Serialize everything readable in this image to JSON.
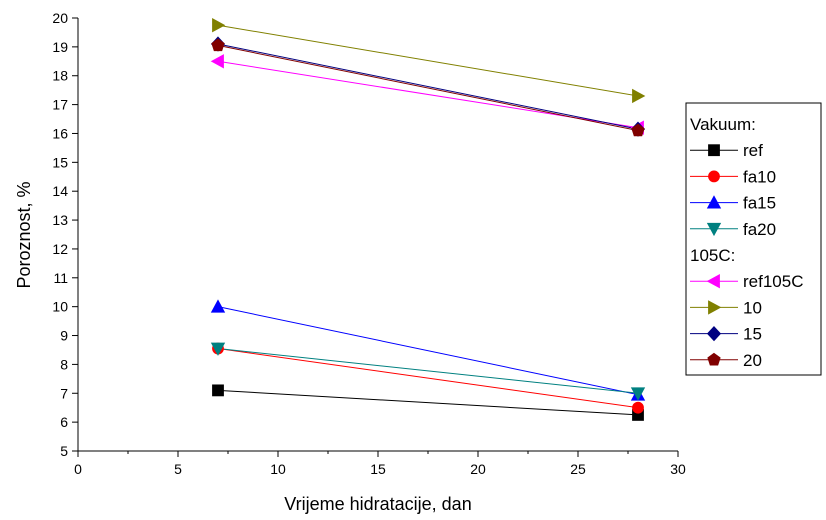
{
  "chart_data": {
    "type": "line",
    "xlabel": "Vrijeme hidratacije, dan",
    "ylabel": "Poroznost, %",
    "xlim": [
      0,
      30
    ],
    "ylim": [
      5,
      20
    ],
    "x_ticks": [
      "0",
      "5",
      "10",
      "15",
      "20",
      "25",
      "30"
    ],
    "y_ticks": [
      "5",
      "6",
      "7",
      "8",
      "9",
      "10",
      "11",
      "12",
      "13",
      "14",
      "15",
      "16",
      "17",
      "18",
      "19",
      "20"
    ],
    "grid": false,
    "legend_position": "right",
    "legend_groups": [
      {
        "heading": "Vakuum:",
        "series": [
          "ref",
          "fa10",
          "fa15",
          "fa20"
        ]
      },
      {
        "heading": "105C:",
        "series": [
          "ref105C",
          "10",
          "15",
          "20"
        ]
      }
    ],
    "series": [
      {
        "name": "ref",
        "color": "#000000",
        "marker": "square",
        "x": [
          7,
          28
        ],
        "y": [
          7.1,
          6.25
        ]
      },
      {
        "name": "fa10",
        "color": "#ff0000",
        "marker": "circle",
        "x": [
          7,
          28
        ],
        "y": [
          8.55,
          6.5
        ]
      },
      {
        "name": "fa15",
        "color": "#0000ff",
        "marker": "triangle-up",
        "x": [
          7,
          28
        ],
        "y": [
          10.0,
          6.95
        ]
      },
      {
        "name": "fa20",
        "color": "#008080",
        "marker": "triangle-down",
        "x": [
          7,
          28
        ],
        "y": [
          8.55,
          7.0
        ]
      },
      {
        "name": "ref105C",
        "color": "#ff00ff",
        "marker": "triangle-left",
        "x": [
          7,
          28
        ],
        "y": [
          18.5,
          16.2
        ]
      },
      {
        "name": "10",
        "color": "#808000",
        "marker": "triangle-right",
        "x": [
          7,
          28
        ],
        "y": [
          19.75,
          17.3
        ]
      },
      {
        "name": "15",
        "color": "#000080",
        "marker": "diamond",
        "x": [
          7,
          28
        ],
        "y": [
          19.1,
          16.15
        ]
      },
      {
        "name": "20",
        "color": "#800000",
        "marker": "pentagon",
        "x": [
          7,
          28
        ],
        "y": [
          19.05,
          16.1
        ]
      }
    ]
  }
}
